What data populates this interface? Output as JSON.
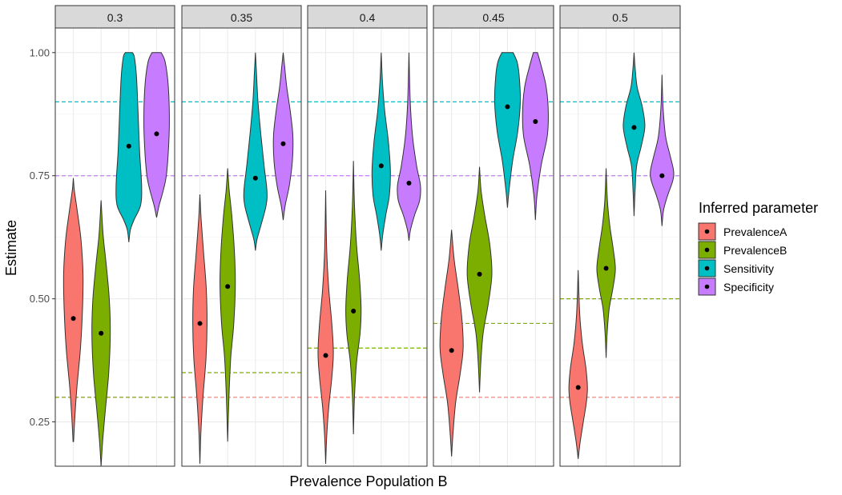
{
  "chart_data": {
    "type": "violin",
    "facet_variable_label": "Prevalence Population B",
    "xlabel": "Prevalence Population B",
    "ylabel": "Estimate",
    "ylim": [
      0.16,
      1.05
    ],
    "yticks": [
      0.25,
      0.5,
      0.75,
      1.0
    ],
    "ytick_labels": [
      "0.25",
      "0.50",
      "0.75",
      "1.00"
    ],
    "grid": true,
    "legend": {
      "title": "Inferred parameter",
      "position": "right",
      "entries": [
        {
          "name": "PrevalenceA",
          "color": "#F8766D"
        },
        {
          "name": "PrevalenceB",
          "color": "#7CAE00"
        },
        {
          "name": "Sensitivity",
          "color": "#00BFC4"
        },
        {
          "name": "Specificity",
          "color": "#C77CFF"
        }
      ]
    },
    "reference_lines": [
      {
        "parameter": "PrevalenceA",
        "value": 0.3
      },
      {
        "parameter": "Sensitivity",
        "value": 0.9
      },
      {
        "parameter": "Specificity",
        "value": 0.75
      }
    ],
    "facets": [
      {
        "label": "0.3",
        "prevalenceB_true": 0.3,
        "violins": [
          {
            "parameter": "PrevalenceA",
            "median": 0.46,
            "min": 0.21,
            "max": 0.745,
            "max_width": 0.38,
            "knots": [
              [
                0.21,
                0.01
              ],
              [
                0.26,
                0.06
              ],
              [
                0.32,
                0.14
              ],
              [
                0.4,
                0.28
              ],
              [
                0.48,
                0.36
              ],
              [
                0.55,
                0.38
              ],
              [
                0.62,
                0.3
              ],
              [
                0.68,
                0.15
              ],
              [
                0.72,
                0.04
              ],
              [
                0.745,
                0.0
              ]
            ]
          },
          {
            "parameter": "PrevalenceB",
            "median": 0.43,
            "min": 0.16,
            "max": 0.7,
            "max_width": 0.36,
            "knots": [
              [
                0.16,
                0.0
              ],
              [
                0.21,
                0.06
              ],
              [
                0.27,
                0.16
              ],
              [
                0.35,
                0.3
              ],
              [
                0.43,
                0.36
              ],
              [
                0.5,
                0.32
              ],
              [
                0.57,
                0.2
              ],
              [
                0.63,
                0.08
              ],
              [
                0.7,
                0.0
              ]
            ]
          },
          {
            "parameter": "Sensitivity",
            "median": 0.81,
            "min": 0.615,
            "max": 1.0,
            "max_width": 0.5,
            "knots": [
              [
                0.615,
                0.0
              ],
              [
                0.64,
                0.06
              ],
              [
                0.66,
                0.2
              ],
              [
                0.69,
                0.46
              ],
              [
                0.73,
                0.5
              ],
              [
                0.8,
                0.42
              ],
              [
                0.88,
                0.36
              ],
              [
                0.95,
                0.3
              ],
              [
                0.99,
                0.22
              ],
              [
                1.0,
                0.14
              ]
            ]
          },
          {
            "parameter": "Specificity",
            "median": 0.835,
            "min": 0.665,
            "max": 1.0,
            "max_width": 0.5,
            "knots": [
              [
                0.665,
                0.0
              ],
              [
                0.69,
                0.1
              ],
              [
                0.72,
                0.26
              ],
              [
                0.75,
                0.38
              ],
              [
                0.8,
                0.46
              ],
              [
                0.86,
                0.5
              ],
              [
                0.93,
                0.46
              ],
              [
                0.98,
                0.34
              ],
              [
                1.0,
                0.18
              ]
            ]
          }
        ]
      },
      {
        "label": "0.35",
        "prevalenceB_true": 0.35,
        "violins": [
          {
            "parameter": "PrevalenceA",
            "median": 0.45,
            "min": 0.165,
            "max": 0.712,
            "max_width": 0.28,
            "knots": [
              [
                0.165,
                0.0
              ],
              [
                0.23,
                0.04
              ],
              [
                0.3,
                0.12
              ],
              [
                0.38,
                0.24
              ],
              [
                0.45,
                0.28
              ],
              [
                0.52,
                0.25
              ],
              [
                0.59,
                0.15
              ],
              [
                0.66,
                0.05
              ],
              [
                0.712,
                0.0
              ]
            ]
          },
          {
            "parameter": "PrevalenceB",
            "median": 0.525,
            "min": 0.21,
            "max": 0.765,
            "max_width": 0.3,
            "knots": [
              [
                0.21,
                0.0
              ],
              [
                0.3,
                0.05
              ],
              [
                0.38,
                0.12
              ],
              [
                0.45,
                0.24
              ],
              [
                0.53,
                0.3
              ],
              [
                0.6,
                0.26
              ],
              [
                0.67,
                0.16
              ],
              [
                0.72,
                0.06
              ],
              [
                0.765,
                0.0
              ]
            ]
          },
          {
            "parameter": "Sensitivity",
            "median": 0.745,
            "min": 0.598,
            "max": 1.0,
            "max_width": 0.45,
            "knots": [
              [
                0.598,
                0.0
              ],
              [
                0.62,
                0.06
              ],
              [
                0.65,
                0.22
              ],
              [
                0.69,
                0.42
              ],
              [
                0.72,
                0.45
              ],
              [
                0.77,
                0.34
              ],
              [
                0.83,
                0.22
              ],
              [
                0.9,
                0.1
              ],
              [
                0.96,
                0.04
              ],
              [
                1.0,
                0.0
              ]
            ]
          },
          {
            "parameter": "Specificity",
            "median": 0.815,
            "min": 0.66,
            "max": 1.0,
            "max_width": 0.38,
            "knots": [
              [
                0.66,
                0.0
              ],
              [
                0.69,
                0.08
              ],
              [
                0.73,
                0.24
              ],
              [
                0.78,
                0.36
              ],
              [
                0.83,
                0.38
              ],
              [
                0.88,
                0.28
              ],
              [
                0.93,
                0.14
              ],
              [
                0.97,
                0.06
              ],
              [
                1.0,
                0.0
              ]
            ]
          }
        ]
      },
      {
        "label": "0.4",
        "prevalenceB_true": 0.4,
        "violins": [
          {
            "parameter": "PrevalenceA",
            "median": 0.385,
            "min": 0.165,
            "max": 0.72,
            "max_width": 0.3,
            "knots": [
              [
                0.165,
                0.0
              ],
              [
                0.22,
                0.04
              ],
              [
                0.28,
                0.12
              ],
              [
                0.34,
                0.24
              ],
              [
                0.39,
                0.3
              ],
              [
                0.45,
                0.24
              ],
              [
                0.52,
                0.12
              ],
              [
                0.6,
                0.04
              ],
              [
                0.72,
                0.0
              ]
            ]
          },
          {
            "parameter": "PrevalenceB",
            "median": 0.475,
            "min": 0.225,
            "max": 0.78,
            "max_width": 0.3,
            "knots": [
              [
                0.225,
                0.0
              ],
              [
                0.3,
                0.04
              ],
              [
                0.37,
                0.12
              ],
              [
                0.43,
                0.26
              ],
              [
                0.48,
                0.3
              ],
              [
                0.54,
                0.24
              ],
              [
                0.61,
                0.12
              ],
              [
                0.69,
                0.04
              ],
              [
                0.78,
                0.0
              ]
            ]
          },
          {
            "parameter": "Sensitivity",
            "median": 0.77,
            "min": 0.598,
            "max": 1.0,
            "max_width": 0.36,
            "knots": [
              [
                0.598,
                0.0
              ],
              [
                0.63,
                0.06
              ],
              [
                0.67,
                0.18
              ],
              [
                0.71,
                0.32
              ],
              [
                0.76,
                0.36
              ],
              [
                0.82,
                0.28
              ],
              [
                0.88,
                0.14
              ],
              [
                0.94,
                0.05
              ],
              [
                1.0,
                0.0
              ]
            ]
          },
          {
            "parameter": "Specificity",
            "median": 0.735,
            "min": 0.618,
            "max": 1.0,
            "max_width": 0.45,
            "knots": [
              [
                0.618,
                0.0
              ],
              [
                0.64,
                0.06
              ],
              [
                0.67,
                0.22
              ],
              [
                0.7,
                0.42
              ],
              [
                0.73,
                0.45
              ],
              [
                0.77,
                0.3
              ],
              [
                0.83,
                0.14
              ],
              [
                0.9,
                0.05
              ],
              [
                1.0,
                0.0
              ]
            ]
          }
        ]
      },
      {
        "label": "0.45",
        "prevalenceB_true": 0.45,
        "violins": [
          {
            "parameter": "PrevalenceA",
            "median": 0.395,
            "min": 0.18,
            "max": 0.64,
            "max_width": 0.45,
            "knots": [
              [
                0.18,
                0.0
              ],
              [
                0.23,
                0.06
              ],
              [
                0.29,
                0.16
              ],
              [
                0.35,
                0.34
              ],
              [
                0.4,
                0.45
              ],
              [
                0.46,
                0.4
              ],
              [
                0.52,
                0.26
              ],
              [
                0.58,
                0.1
              ],
              [
                0.64,
                0.0
              ]
            ]
          },
          {
            "parameter": "PrevalenceB",
            "median": 0.55,
            "min": 0.31,
            "max": 0.768,
            "max_width": 0.48,
            "knots": [
              [
                0.31,
                0.0
              ],
              [
                0.37,
                0.05
              ],
              [
                0.43,
                0.14
              ],
              [
                0.49,
                0.34
              ],
              [
                0.55,
                0.48
              ],
              [
                0.61,
                0.4
              ],
              [
                0.67,
                0.2
              ],
              [
                0.72,
                0.06
              ],
              [
                0.768,
                0.0
              ]
            ]
          },
          {
            "parameter": "Sensitivity",
            "median": 0.89,
            "min": 0.685,
            "max": 1.0,
            "max_width": 0.5,
            "knots": [
              [
                0.685,
                0.0
              ],
              [
                0.72,
                0.06
              ],
              [
                0.78,
                0.2
              ],
              [
                0.84,
                0.4
              ],
              [
                0.9,
                0.5
              ],
              [
                0.95,
                0.46
              ],
              [
                0.98,
                0.38
              ],
              [
                1.0,
                0.22
              ]
            ]
          },
          {
            "parameter": "Specificity",
            "median": 0.86,
            "min": 0.66,
            "max": 1.0,
            "max_width": 0.5,
            "knots": [
              [
                0.66,
                0.0
              ],
              [
                0.71,
                0.06
              ],
              [
                0.77,
                0.22
              ],
              [
                0.83,
                0.46
              ],
              [
                0.88,
                0.5
              ],
              [
                0.93,
                0.42
              ],
              [
                0.97,
                0.24
              ],
              [
                1.0,
                0.08
              ]
            ]
          }
        ]
      },
      {
        "label": "0.5",
        "prevalenceB_true": 0.5,
        "violins": [
          {
            "parameter": "PrevalenceA",
            "median": 0.32,
            "min": 0.175,
            "max": 0.558,
            "max_width": 0.36,
            "knots": [
              [
                0.175,
                0.0
              ],
              [
                0.21,
                0.08
              ],
              [
                0.25,
                0.2
              ],
              [
                0.29,
                0.32
              ],
              [
                0.32,
                0.36
              ],
              [
                0.36,
                0.3
              ],
              [
                0.41,
                0.16
              ],
              [
                0.47,
                0.06
              ],
              [
                0.558,
                0.0
              ]
            ]
          },
          {
            "parameter": "PrevalenceB",
            "median": 0.562,
            "min": 0.38,
            "max": 0.765,
            "max_width": 0.36,
            "knots": [
              [
                0.38,
                0.0
              ],
              [
                0.43,
                0.04
              ],
              [
                0.48,
                0.12
              ],
              [
                0.52,
                0.26
              ],
              [
                0.56,
                0.36
              ],
              [
                0.6,
                0.28
              ],
              [
                0.65,
                0.14
              ],
              [
                0.7,
                0.05
              ],
              [
                0.765,
                0.0
              ]
            ]
          },
          {
            "parameter": "Sensitivity",
            "median": 0.848,
            "min": 0.668,
            "max": 1.0,
            "max_width": 0.42,
            "knots": [
              [
                0.668,
                0.0
              ],
              [
                0.72,
                0.04
              ],
              [
                0.77,
                0.1
              ],
              [
                0.81,
                0.28
              ],
              [
                0.85,
                0.42
              ],
              [
                0.89,
                0.32
              ],
              [
                0.93,
                0.12
              ],
              [
                0.97,
                0.04
              ],
              [
                1.0,
                0.0
              ]
            ]
          },
          {
            "parameter": "Specificity",
            "median": 0.75,
            "min": 0.648,
            "max": 0.955,
            "max_width": 0.45,
            "knots": [
              [
                0.648,
                0.0
              ],
              [
                0.68,
                0.06
              ],
              [
                0.71,
                0.22
              ],
              [
                0.74,
                0.42
              ],
              [
                0.76,
                0.45
              ],
              [
                0.79,
                0.32
              ],
              [
                0.83,
                0.14
              ],
              [
                0.89,
                0.04
              ],
              [
                0.955,
                0.0
              ]
            ]
          }
        ]
      }
    ]
  }
}
